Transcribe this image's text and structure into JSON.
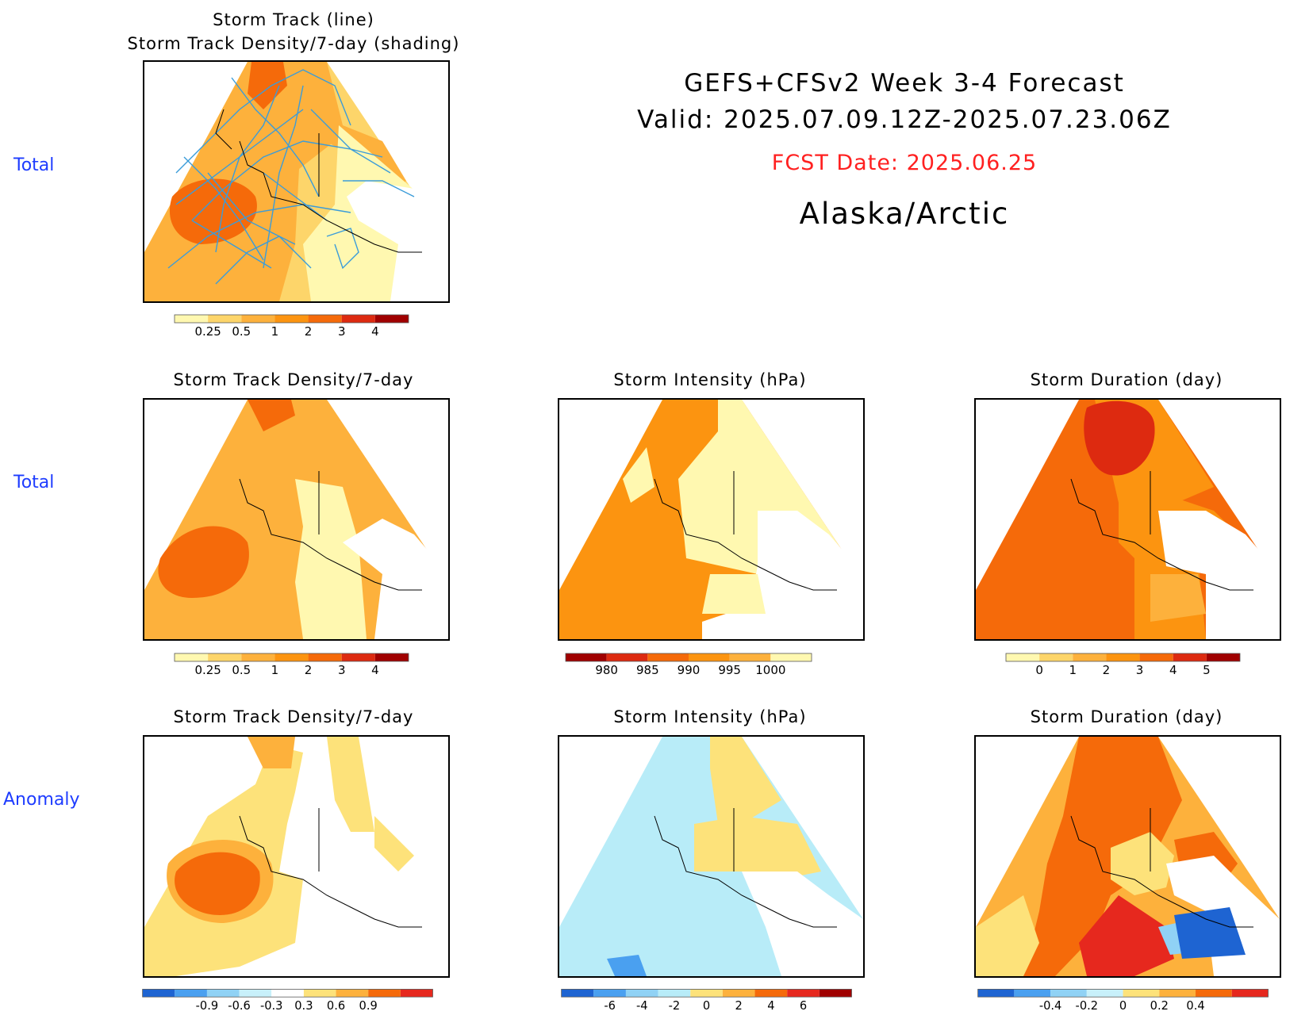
{
  "header": {
    "title_line1": "GEFS+CFSv2 Week 3-4 Forecast",
    "title_line2": "Valid: 2025.07.09.12Z-2025.07.23.06Z",
    "fcst_date": "FCST Date: 2025.06.25",
    "region": "Alaska/Arctic"
  },
  "rows": [
    {
      "label": "Total"
    },
    {
      "label": "Total"
    },
    {
      "label": "Anomaly"
    }
  ],
  "panels": {
    "top": {
      "title_line1": "Storm Track (line)",
      "title_line2": "Storm Track Density/7-day (shading)"
    },
    "density_total": {
      "title": "Storm Track Density/7-day"
    },
    "intensity_total": {
      "title": "Storm Intensity (hPa)"
    },
    "duration_total": {
      "title": "Storm Duration (day)"
    },
    "density_anom": {
      "title": "Storm Track Density/7-day"
    },
    "intensity_anom": {
      "title": "Storm Intensity (hPa)"
    },
    "duration_anom": {
      "title": "Storm Duration (day)"
    }
  },
  "colorbars": {
    "density": {
      "labels": [
        "0.25",
        "0.5",
        "1",
        "2",
        "3",
        "4"
      ],
      "colors": [
        "#fff8b0",
        "#fdd56a",
        "#fdb13c",
        "#fc9410",
        "#f56a0a",
        "#dd2a10",
        "#a00000"
      ]
    },
    "intensity": {
      "labels": [
        "980",
        "985",
        "990",
        "995",
        "1000"
      ],
      "colors": [
        "#a00000",
        "#dd2a10",
        "#f56a0a",
        "#fc9410",
        "#fdb13c",
        "#fff8b0"
      ]
    },
    "duration": {
      "labels": [
        "0",
        "1",
        "2",
        "3",
        "4",
        "5"
      ],
      "colors": [
        "#fff8b0",
        "#fdd56a",
        "#fdb13c",
        "#fc9410",
        "#f56a0a",
        "#dd2a10",
        "#a00000"
      ]
    },
    "density_anom": {
      "labels": [
        "-0.9",
        "-0.6",
        "-0.3",
        "0.3",
        "0.6",
        "0.9"
      ],
      "colors": [
        "#1e64d2",
        "#4aa0f0",
        "#90d2f5",
        "#c8f0fa",
        "#ffffff",
        "#fde27a",
        "#fdb13c",
        "#f56a0a",
        "#e6281e"
      ]
    },
    "intensity_anom": {
      "labels": [
        "-6",
        "-4",
        "-2",
        "0",
        "2",
        "4",
        "6"
      ],
      "colors": [
        "#1e64d2",
        "#4aa0f0",
        "#90d2f5",
        "#b8ecf8",
        "#fde27a",
        "#fdb13c",
        "#f56a0a",
        "#e6281e",
        "#a00000"
      ]
    },
    "duration_anom": {
      "labels": [
        "-0.4",
        "-0.2",
        "0",
        "0.2",
        "0.4"
      ],
      "colors": [
        "#1e64d2",
        "#4aa0f0",
        "#90d2f5",
        "#c8f0fa",
        "#fde27a",
        "#fdb13c",
        "#f56a0a",
        "#e6281e"
      ]
    }
  }
}
